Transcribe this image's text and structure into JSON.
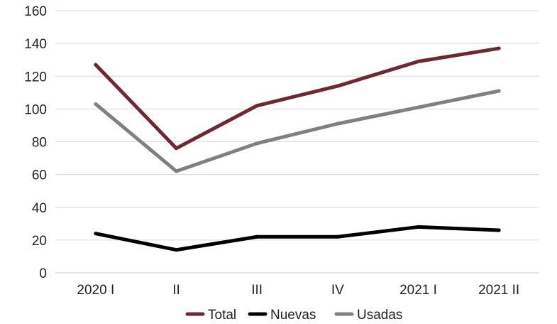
{
  "chart_data": {
    "type": "line",
    "title": "",
    "xlabel": "",
    "ylabel": "",
    "categories": [
      "2020 I",
      "II",
      "III",
      "IV",
      "2021 I",
      "2021 II"
    ],
    "ylim": [
      0,
      160
    ],
    "yticks": [
      0,
      20,
      40,
      60,
      80,
      100,
      120,
      140,
      160
    ],
    "grid": true,
    "legend_position": "bottom",
    "series": [
      {
        "name": "Total",
        "color": "#722630",
        "values": [
          127,
          76,
          102,
          114,
          129,
          137
        ]
      },
      {
        "name": "Nuevas",
        "color": "#000000",
        "values": [
          24,
          14,
          22,
          22,
          28,
          26
        ]
      },
      {
        "name": "Usadas",
        "color": "#808080",
        "values": [
          103,
          62,
          79,
          91,
          101,
          111
        ]
      }
    ]
  }
}
